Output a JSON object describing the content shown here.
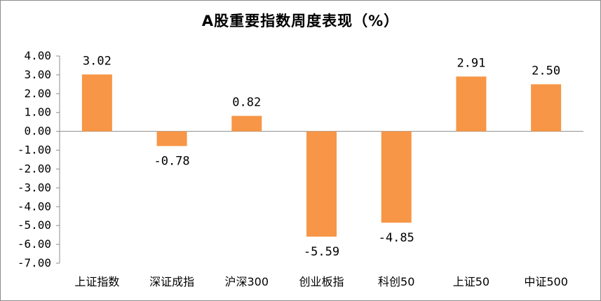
{
  "chart_data": {
    "type": "bar",
    "title": "A股重要指数周度表现（%）",
    "categories": [
      "上证指数",
      "深证成指",
      "沪深300",
      "创业板指",
      "科创50",
      "上证50",
      "中证500"
    ],
    "values": [
      3.02,
      -0.78,
      0.82,
      -5.59,
      -4.85,
      2.91,
      2.5
    ],
    "data_labels": [
      "3.02",
      "-0.78",
      "0.82",
      "-5.59",
      "-4.85",
      "2.91",
      "2.50"
    ],
    "y_ticks": [
      "4.00",
      "3.00",
      "2.00",
      "1.00",
      "0.00",
      "-1.00",
      "-2.00",
      "-3.00",
      "-4.00",
      "-5.00",
      "-6.00",
      "-7.00"
    ],
    "y_tick_values": [
      4,
      3,
      2,
      1,
      0,
      -1,
      -2,
      -3,
      -4,
      -5,
      -6,
      -7
    ],
    "ylim": [
      -7,
      4
    ],
    "xlabel": "",
    "ylabel": "",
    "grid": false,
    "legend": "none",
    "bar_color": "#f79646"
  }
}
